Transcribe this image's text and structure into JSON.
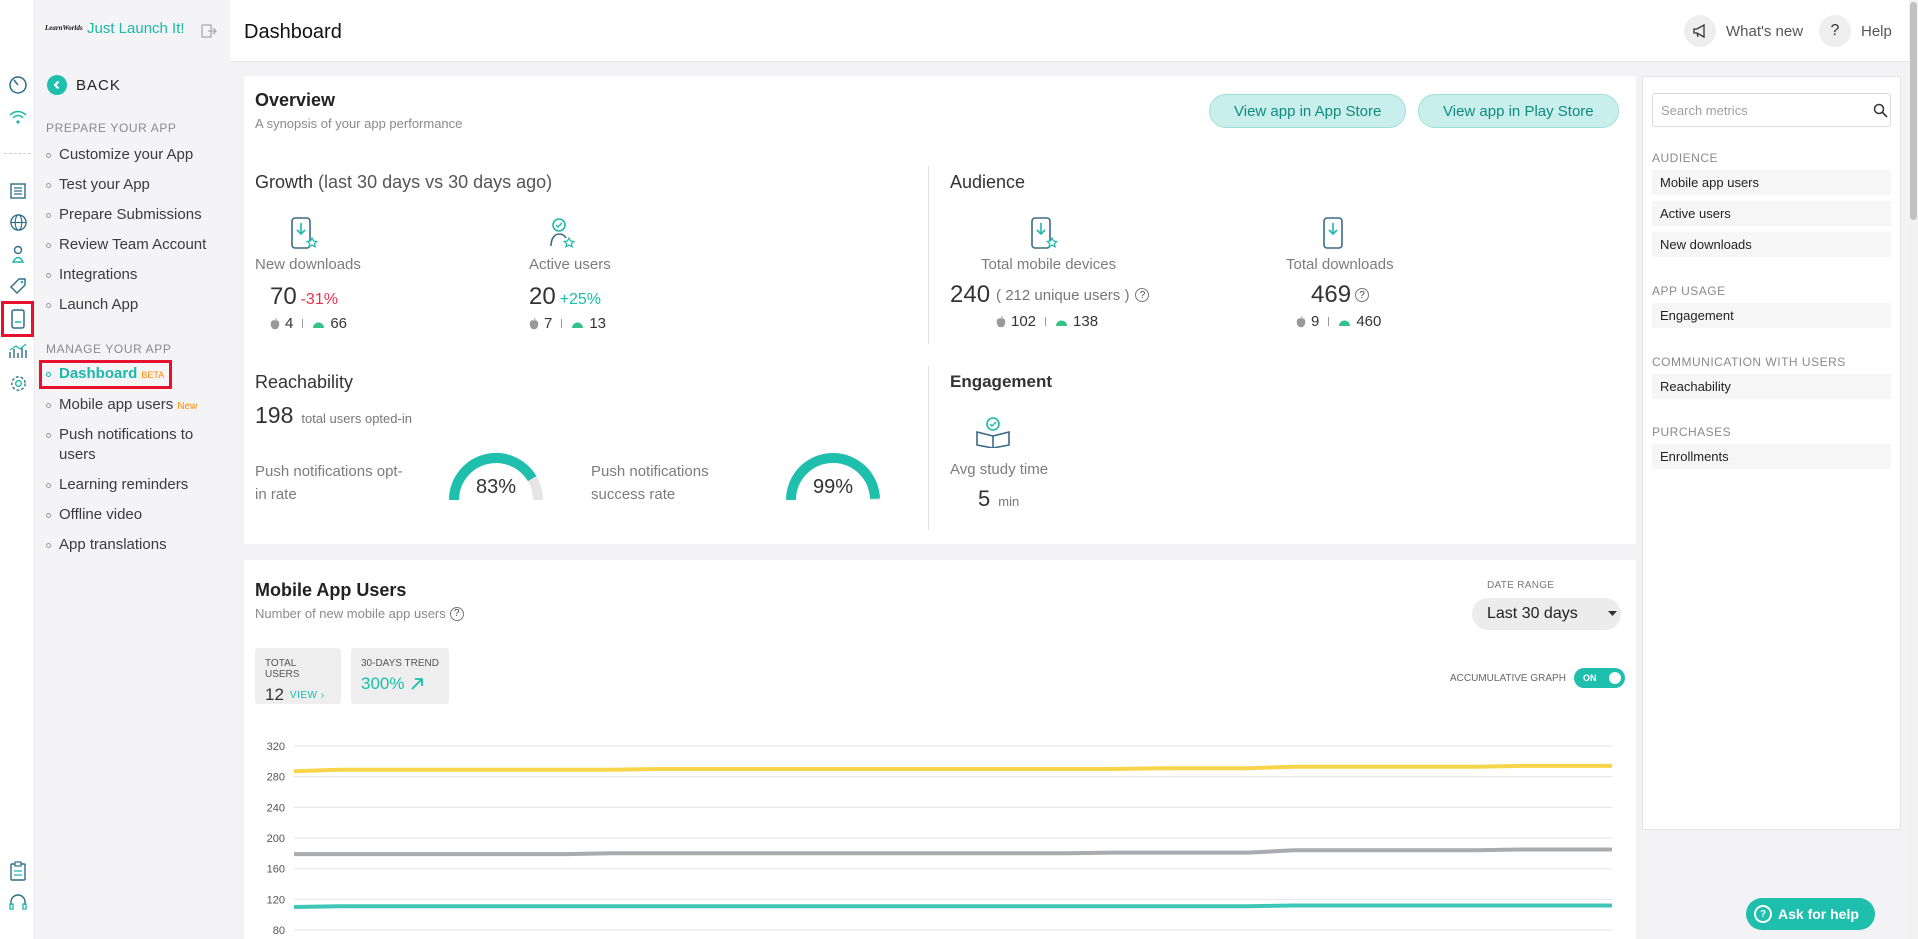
{
  "brand": {
    "logo_text": "LearnWorlds",
    "app_name": "Just Launch It!"
  },
  "nav": {
    "back_label": "BACK",
    "prepare_header": "PREPARE YOUR APP",
    "prepare_items": [
      "Customize your App",
      "Test your App",
      "Prepare Submissions",
      "Review Team Account",
      "Integrations",
      "Launch App"
    ],
    "manage_header": "MANAGE YOUR APP",
    "dashboard_label": "Dashboard",
    "dashboard_badge": "BETA",
    "mobile_users_label": "Mobile app users",
    "mobile_users_badge": "New",
    "manage_items": [
      "Push notifications to users",
      "Learning reminders",
      "Offline video",
      "App translations"
    ]
  },
  "header": {
    "title": "Dashboard",
    "whats_new": "What's new",
    "help": "Help"
  },
  "overview": {
    "title": "Overview",
    "subtitle": "A synopsis of your app performance",
    "app_store_button": "View app in App Store",
    "play_store_button": "View app in Play Store",
    "growth": {
      "title": "Growth",
      "period": "(last 30 days vs 30 days ago)",
      "new_downloads": {
        "label": "New downloads",
        "value": "70",
        "change": "-31%",
        "ios": "4",
        "android": "66"
      },
      "active_users": {
        "label": "Active users",
        "value": "20",
        "change": "+25%",
        "ios": "7",
        "android": "13"
      }
    },
    "audience": {
      "title": "Audience",
      "total_devices": {
        "label": "Total mobile devices",
        "value": "240",
        "unique": "( 212 unique users )",
        "ios": "102",
        "android": "138"
      },
      "total_downloads": {
        "label": "Total downloads",
        "value": "469",
        "ios": "9",
        "android": "460"
      }
    },
    "reachability": {
      "title": "Reachability",
      "total": "198",
      "total_label": "total users opted-in",
      "optin_label": "Push notifications opt-in rate",
      "optin_value": "83%",
      "optin_fraction": 0.83,
      "success_label": "Push notifications success rate",
      "success_value": "99%",
      "success_fraction": 0.99
    },
    "engagement": {
      "title": "Engagement",
      "label": "Avg study time",
      "value": "5",
      "unit": "min"
    }
  },
  "metrics_panel": {
    "search_placeholder": "Search metrics",
    "sections": [
      {
        "title": "AUDIENCE",
        "items": [
          "Mobile app users",
          "Active users",
          "New downloads"
        ]
      },
      {
        "title": "APP USAGE",
        "items": [
          "Engagement"
        ]
      },
      {
        "title": "COMMUNICATION WITH USERS",
        "items": [
          "Reachability"
        ]
      },
      {
        "title": "PURCHASES",
        "items": [
          "Enrollments"
        ]
      }
    ]
  },
  "mobile_users": {
    "title": "Mobile App Users",
    "subtitle": "Number of new mobile app users",
    "date_range_label": "DATE RANGE",
    "date_range_value": "Last 30 days",
    "total_users_label": "TOTAL USERS",
    "total_users_value": "12",
    "view_label": "VIEW",
    "trend_label": "30-DAYS TREND",
    "trend_value": "300%",
    "accumulative_label": "ACCUMULATIVE GRAPH",
    "toggle_label": "ON"
  },
  "ask_help": "Ask for help",
  "colors": {
    "accent": "#1fbfae",
    "negative": "#e8304a",
    "highlight": "#e8112d",
    "badge": "#ff8b00"
  },
  "chart_data": {
    "type": "line",
    "title": "",
    "xlabel": "",
    "ylabel": "",
    "ylim": [
      80,
      320
    ],
    "yticks": [
      80,
      120,
      160,
      200,
      240,
      280,
      320
    ],
    "x": [
      1,
      2,
      3,
      4,
      5,
      6,
      7,
      8,
      9,
      10,
      11,
      12,
      13,
      14,
      15,
      16,
      17,
      18,
      19,
      20,
      21,
      22,
      23,
      24,
      25,
      26,
      27,
      28,
      29,
      30
    ],
    "series": [
      {
        "color": "#f7d54a",
        "values": [
          287,
          289,
          289,
          289,
          289,
          289,
          289,
          289,
          290,
          290,
          290,
          290,
          290,
          290,
          290,
          290,
          290,
          290,
          290,
          291,
          291,
          291,
          293,
          293,
          293,
          293,
          293,
          294,
          294,
          294
        ]
      },
      {
        "color": "#a9abaf",
        "values": [
          179,
          179,
          179,
          179,
          179,
          179,
          179,
          180,
          180,
          180,
          180,
          180,
          180,
          180,
          180,
          180,
          180,
          180,
          181,
          181,
          181,
          181,
          184,
          184,
          184,
          184,
          184,
          185,
          185,
          185
        ]
      },
      {
        "color": "#3ec7b7",
        "values": [
          110,
          111,
          111,
          111,
          111,
          111,
          111,
          111,
          111,
          111,
          111,
          111,
          111,
          111,
          111,
          111,
          111,
          111,
          111,
          111,
          111,
          111,
          112,
          112,
          112,
          112,
          112,
          112,
          112,
          112
        ]
      }
    ]
  }
}
